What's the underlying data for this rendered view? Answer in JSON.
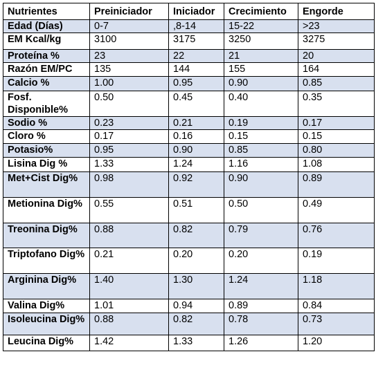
{
  "table": {
    "headers": [
      "Nutrientes",
      "Preiniciador",
      "Iniciador",
      "Crecimiento",
      "Engorde"
    ],
    "rows": [
      {
        "label": "Edad (Días)",
        "values": [
          "0-7",
          ",8-14",
          "15-22",
          ">23"
        ],
        "shaded": true
      },
      {
        "label": "EM Kcal/kg",
        "values": [
          "3100",
          "3175",
          "3250",
          "3275"
        ],
        "shaded": false
      },
      {
        "label": "Proteína %",
        "values": [
          "23",
          "22",
          "21",
          "20"
        ],
        "shaded": true
      },
      {
        "label": "Razón EM/PC",
        "values": [
          "135",
          "144",
          "155",
          "164"
        ],
        "shaded": false
      },
      {
        "label": "Calcio %",
        "values": [
          "1.00",
          "0.95",
          "0.90",
          "0.85"
        ],
        "shaded": true
      },
      {
        "label": "Fosf. Disponible%",
        "values": [
          "0.50",
          "0.45",
          "0.40",
          "0.35"
        ],
        "shaded": false
      },
      {
        "label": "Sodio %",
        "values": [
          "0.23",
          "0.21",
          "0.19",
          "0.17"
        ],
        "shaded": true
      },
      {
        "label": "Cloro %",
        "values": [
          "0.17",
          "0.16",
          "0.15",
          "0.15"
        ],
        "shaded": false
      },
      {
        "label": "Potasio%",
        "values": [
          "0.95",
          "0.90",
          "0.85",
          "0.80"
        ],
        "shaded": true
      },
      {
        "label": "Lisina Dig %",
        "values": [
          "1.33",
          "1.24",
          "1.16",
          "1.08"
        ],
        "shaded": false
      },
      {
        "label": "Met+Cist Dig%",
        "values": [
          "0.98",
          "0.92",
          "0.90",
          "0.89"
        ],
        "shaded": true
      },
      {
        "label": "Metionina Dig%",
        "values": [
          "0.55",
          "0.51",
          "0.50",
          "0.49"
        ],
        "shaded": false
      },
      {
        "label": "Treonina Dig%",
        "values": [
          "0.88",
          "0.82",
          "0.79",
          "0.76"
        ],
        "shaded": true
      },
      {
        "label": "Triptofano Dig%",
        "values": [
          "0.21",
          "0.20",
          "0.20",
          "0.19"
        ],
        "shaded": false
      },
      {
        "label": "Arginina Dig%",
        "values": [
          "1.40",
          "1.30",
          "1.24",
          "1.18"
        ],
        "shaded": true
      },
      {
        "label": "Valina Dig%",
        "values": [
          "1.01",
          "0.94",
          "0.89",
          "0.84"
        ],
        "shaded": false
      },
      {
        "label": "Isoleucina Dig%",
        "values": [
          "0.88",
          "0.82",
          "0.78",
          "0.73"
        ],
        "shaded": true
      },
      {
        "label": "Leucina Dig%",
        "values": [
          "1.42",
          "1.33",
          "1.26",
          "1.20"
        ],
        "shaded": false
      }
    ]
  }
}
